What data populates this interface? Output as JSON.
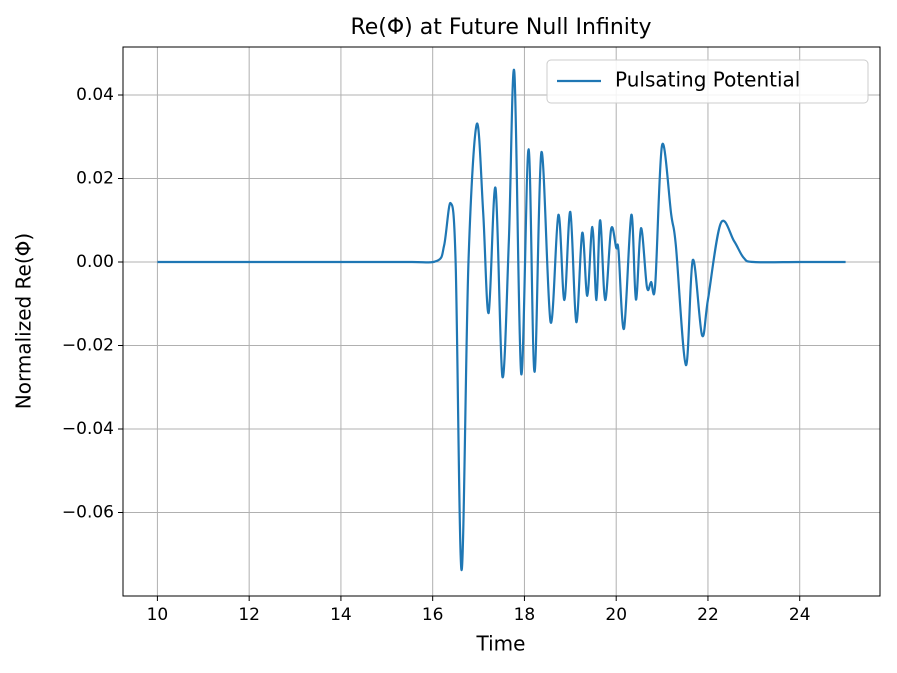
{
  "chart_data": {
    "type": "line",
    "title": "Re(Φ) at Future Null Infinity",
    "x_label": "Time",
    "y_label": "Normalized Re(Φ)",
    "x": [
      10,
      12,
      14,
      15.5,
      16.1,
      16.25,
      16.39,
      16.5,
      16.63,
      16.78,
      16.96,
      17.1,
      17.22,
      17.37,
      17.52,
      17.66,
      17.78,
      17.93,
      18.09,
      18.22,
      18.37,
      18.57,
      18.74,
      18.87,
      19.0,
      19.13,
      19.26,
      19.37,
      19.48,
      19.57,
      19.65,
      19.76,
      19.89,
      20.0,
      20.05,
      20.17,
      20.33,
      20.43,
      20.54,
      20.67,
      20.76,
      20.85,
      21.0,
      21.2,
      21.3,
      21.52,
      21.67,
      21.87,
      22.0,
      22.28,
      22.57,
      22.78,
      23.0,
      24,
      25
    ],
    "series": [
      {
        "name": "Pulsating Potential",
        "color": "#1f77b4",
        "values": [
          0,
          0,
          0,
          0,
          0.0003,
          0.004,
          0.0141,
          0,
          -0.0738,
          0,
          0.033,
          0.012,
          -0.0122,
          0.0177,
          -0.0275,
          0.005,
          0.0455,
          -0.0268,
          0.027,
          -0.0263,
          0.0263,
          -0.0144,
          0.0113,
          -0.0091,
          0.012,
          -0.0144,
          0.007,
          -0.0081,
          0.0084,
          -0.0091,
          0.01,
          -0.0091,
          0.0079,
          0.0034,
          0.0028,
          -0.016,
          0.0113,
          -0.009,
          0.0081,
          -0.006,
          -0.0048,
          -0.0055,
          0.028,
          0.0113,
          0.004,
          -0.0247,
          0.0005,
          -0.0175,
          -0.009,
          0.0093,
          0.005,
          0.001,
          0,
          0,
          0
        ]
      }
    ],
    "xlim": [
      9.25,
      25.75
    ],
    "xticks": [
      10,
      12,
      14,
      16,
      18,
      20,
      22,
      24
    ],
    "ylim": [
      -0.08,
      0.0515
    ],
    "yticks": [
      {
        "value": -0.06,
        "label": "−0.06"
      },
      {
        "value": -0.04,
        "label": "−0.04"
      },
      {
        "value": -0.02,
        "label": "−0.02"
      },
      {
        "value": 0,
        "label": "0.00"
      },
      0.02,
      0.04
    ],
    "grid": true,
    "legend": "upper right"
  }
}
